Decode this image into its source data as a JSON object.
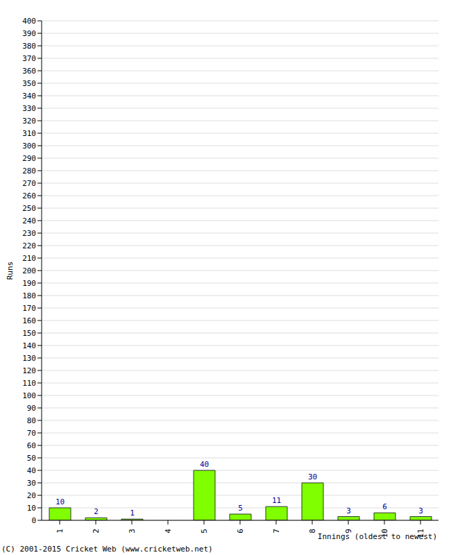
{
  "chart_data": {
    "type": "bar",
    "x_label": "Innings (oldest to newest)",
    "y_label": "Runs",
    "annotations": [
      "(C) 2001-2015 Cricket Web (www.cricketweb.net)"
    ],
    "categories": [
      "1",
      "2",
      "3",
      "4",
      "5",
      "6",
      "7",
      "8",
      "9",
      "10",
      "11"
    ],
    "values": [
      10,
      2,
      1,
      0,
      40,
      5,
      11,
      30,
      3,
      6,
      3
    ],
    "color": "#80ff00",
    "ylim": [
      0,
      400
    ],
    "yticks": [
      0,
      10,
      20,
      30,
      40,
      50,
      60,
      70,
      80,
      90,
      100,
      110,
      120,
      130,
      140,
      150,
      160,
      170,
      180,
      190,
      200,
      210,
      220,
      230,
      240,
      250,
      260,
      270,
      280,
      290,
      300,
      310,
      320,
      330,
      340,
      350,
      360,
      370,
      380,
      390,
      400
    ],
    "grid": true,
    "data_labels": true
  }
}
